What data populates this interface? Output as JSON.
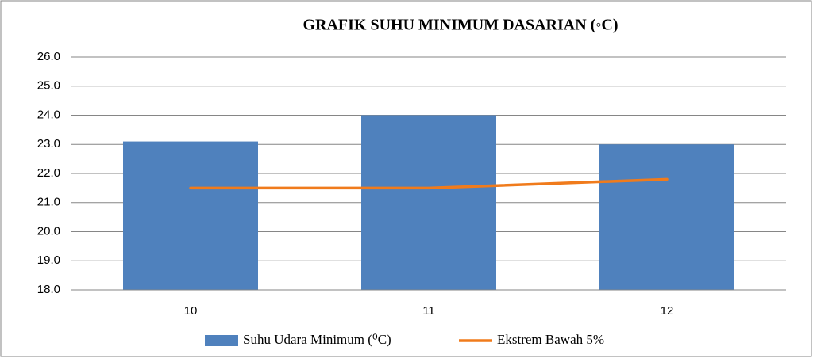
{
  "chart_data": {
    "type": "bar",
    "title": "GRAFIK SUHU MINIMUM DASARIAN (◦C)",
    "categories": [
      "10",
      "11",
      "12"
    ],
    "series": [
      {
        "name": "Suhu Udara Minimum (⁰C)",
        "type": "bar",
        "color": "#4f81bd",
        "values": [
          23.1,
          24.0,
          23.0
        ]
      },
      {
        "name": "Ekstrem Bawah  5%",
        "type": "line",
        "color": "#f07b1c",
        "values": [
          21.5,
          21.5,
          21.8
        ]
      }
    ],
    "ylim": [
      18,
      26
    ],
    "yticks": [
      {
        "value": 18,
        "label": "18.0"
      },
      {
        "value": 19,
        "label": "19.0"
      },
      {
        "value": 20,
        "label": "20.0"
      },
      {
        "value": 21,
        "label": "21.0"
      },
      {
        "value": 22,
        "label": "22.0"
      },
      {
        "value": 23,
        "label": "23.0"
      },
      {
        "value": 24,
        "label": "24.0"
      },
      {
        "value": 25,
        "label": "25.0"
      },
      {
        "value": 26,
        "label": "26.0"
      }
    ],
    "grid": true,
    "legend": "bottom"
  }
}
